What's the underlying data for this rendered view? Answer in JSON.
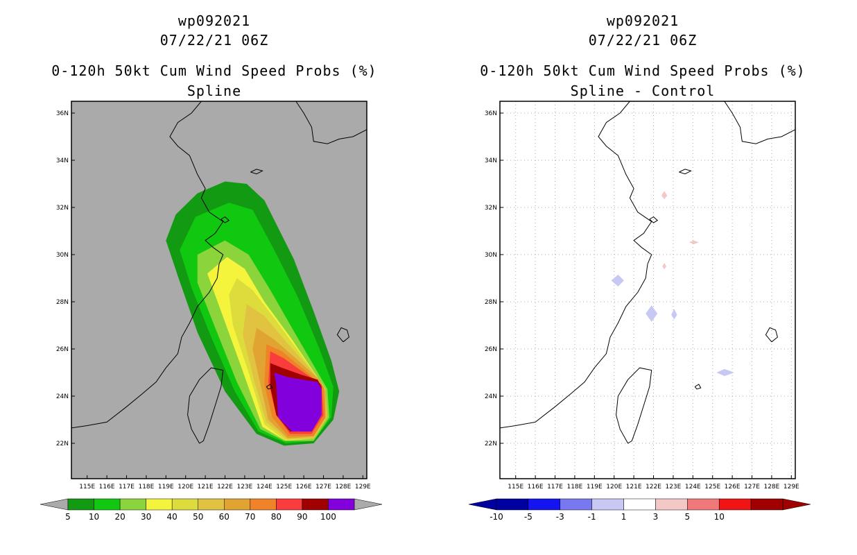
{
  "panels": [
    {
      "storm_id": "wp092021",
      "datetime": "07/22/21 06Z",
      "product": "0-120h 50kt Cum Wind Speed Probs (%)",
      "subtitle": "Spline"
    },
    {
      "storm_id": "wp092021",
      "datetime": "07/22/21 06Z",
      "product": "0-120h 50kt Cum Wind Speed Probs (%)",
      "subtitle": "Spline - Control"
    }
  ],
  "chart_data": [
    {
      "type": "heatmap",
      "title": "0-120h 50kt Cum Wind Speed Probs (%) Spline",
      "background_color": "#aaaaaa",
      "xlim": [
        114.2,
        129.2
      ],
      "ylim": [
        20.5,
        36.5
      ],
      "xticks": [
        {
          "value": 115,
          "label": "115E"
        },
        {
          "value": 116,
          "label": "116E"
        },
        {
          "value": 117,
          "label": "117E"
        },
        {
          "value": 118,
          "label": "118E"
        },
        {
          "value": 119,
          "label": "119E"
        },
        {
          "value": 120,
          "label": "120E"
        },
        {
          "value": 121,
          "label": "121E"
        },
        {
          "value": 122,
          "label": "122E"
        },
        {
          "value": 123,
          "label": "123E"
        },
        {
          "value": 124,
          "label": "124E"
        },
        {
          "value": 125,
          "label": "125E"
        },
        {
          "value": 126,
          "label": "126E"
        },
        {
          "value": 127,
          "label": "127E"
        },
        {
          "value": 128,
          "label": "128E"
        },
        {
          "value": 129,
          "label": "129E"
        }
      ],
      "yticks": [
        {
          "value": 22,
          "label": "22N"
        },
        {
          "value": 24,
          "label": "24N"
        },
        {
          "value": 26,
          "label": "26N"
        },
        {
          "value": 28,
          "label": "28N"
        },
        {
          "value": 30,
          "label": "30N"
        },
        {
          "value": 32,
          "label": "32N"
        },
        {
          "value": 34,
          "label": "34N"
        },
        {
          "value": 36,
          "label": "36N"
        }
      ],
      "grid": false,
      "contours": [
        {
          "level": 5,
          "color": "#129a12",
          "polygon": [
            [
              122.0,
              33.1
            ],
            [
              123.1,
              33.0
            ],
            [
              124.0,
              32.3
            ],
            [
              125.5,
              29.8
            ],
            [
              126.5,
              27.6
            ],
            [
              127.4,
              25.5
            ],
            [
              127.8,
              24.2
            ],
            [
              127.5,
              23.0
            ],
            [
              126.5,
              22.0
            ],
            [
              125.0,
              21.9
            ],
            [
              123.6,
              22.4
            ],
            [
              122.0,
              24.2
            ],
            [
              120.6,
              26.7
            ],
            [
              119.6,
              29.1
            ],
            [
              119.0,
              30.6
            ],
            [
              119.5,
              31.7
            ],
            [
              120.6,
              32.6
            ]
          ]
        },
        {
          "level": 10,
          "color": "#10c810",
          "polygon": [
            [
              122.2,
              32.2
            ],
            [
              123.4,
              31.9
            ],
            [
              124.5,
              30.2
            ],
            [
              125.7,
              28.2
            ],
            [
              126.8,
              26.0
            ],
            [
              127.5,
              24.4
            ],
            [
              127.4,
              23.1
            ],
            [
              126.5,
              22.1
            ],
            [
              125.1,
              22.0
            ],
            [
              123.7,
              22.5
            ],
            [
              122.5,
              24.2
            ],
            [
              121.3,
              26.5
            ],
            [
              120.3,
              28.6
            ],
            [
              119.7,
              30.2
            ],
            [
              120.5,
              31.6
            ]
          ]
        },
        {
          "level": 20,
          "color": "#8bd43c",
          "polygon": [
            [
              122.0,
              30.6
            ],
            [
              123.2,
              30.0
            ],
            [
              124.3,
              28.5
            ],
            [
              125.6,
              26.6
            ],
            [
              127.2,
              24.3
            ],
            [
              127.3,
              23.1
            ],
            [
              126.5,
              22.1
            ],
            [
              125.0,
              22.1
            ],
            [
              123.8,
              22.6
            ],
            [
              122.6,
              24.6
            ],
            [
              121.5,
              26.9
            ],
            [
              120.6,
              28.8
            ],
            [
              120.6,
              30.0
            ]
          ]
        },
        {
          "level": 30,
          "color": "#f4f43c",
          "polygon": [
            [
              122.1,
              29.9
            ],
            [
              123.0,
              29.4
            ],
            [
              124.0,
              28.0
            ],
            [
              125.4,
              26.4
            ],
            [
              127.1,
              24.3
            ],
            [
              127.2,
              23.1
            ],
            [
              126.5,
              22.2
            ],
            [
              125.1,
              22.1
            ],
            [
              123.9,
              22.7
            ],
            [
              122.8,
              25.3
            ],
            [
              121.8,
              27.6
            ],
            [
              121.1,
              29.2
            ]
          ]
        },
        {
          "level": 40,
          "color": "#dcdc3c",
          "polygon": [
            [
              122.6,
              29.0
            ],
            [
              123.4,
              28.5
            ],
            [
              124.6,
              27.2
            ],
            [
              126.0,
              25.6
            ],
            [
              127.1,
              24.3
            ],
            [
              127.2,
              23.1
            ],
            [
              126.5,
              22.2
            ],
            [
              125.1,
              22.1
            ],
            [
              124.0,
              22.8
            ],
            [
              123.2,
              25.0
            ],
            [
              122.4,
              27.0
            ],
            [
              122.2,
              28.3
            ]
          ]
        },
        {
          "level": 50,
          "color": "#e1c341",
          "polygon": [
            [
              123.1,
              27.9
            ],
            [
              124.0,
              27.4
            ],
            [
              125.1,
              26.3
            ],
            [
              126.3,
              25.2
            ],
            [
              127.1,
              24.3
            ],
            [
              127.2,
              23.1
            ],
            [
              126.5,
              22.2
            ],
            [
              125.1,
              22.2
            ],
            [
              124.1,
              22.9
            ],
            [
              123.5,
              24.6
            ],
            [
              122.9,
              26.6
            ]
          ]
        },
        {
          "level": 60,
          "color": "#e1a332",
          "polygon": [
            [
              123.6,
              26.9
            ],
            [
              124.5,
              26.4
            ],
            [
              125.6,
              25.6
            ],
            [
              126.8,
              24.7
            ],
            [
              127.1,
              24.2
            ],
            [
              127.1,
              23.1
            ],
            [
              126.5,
              22.3
            ],
            [
              125.2,
              22.2
            ],
            [
              124.2,
              23.0
            ],
            [
              123.8,
              24.5
            ],
            [
              123.4,
              26.0
            ]
          ]
        },
        {
          "level": 70,
          "color": "#f08228",
          "polygon": [
            [
              124.1,
              26.2
            ],
            [
              124.9,
              25.9
            ],
            [
              125.9,
              25.2
            ],
            [
              127.0,
              24.4
            ],
            [
              127.1,
              23.1
            ],
            [
              126.5,
              22.3
            ],
            [
              125.2,
              22.3
            ],
            [
              124.4,
              23.1
            ],
            [
              124.0,
              24.5
            ]
          ]
        },
        {
          "level": 80,
          "color": "#fa3c3c",
          "polygon": [
            [
              124.3,
              25.9
            ],
            [
              125.0,
              25.6
            ],
            [
              126.0,
              25.0
            ],
            [
              126.9,
              24.5
            ],
            [
              127.0,
              23.2
            ],
            [
              126.4,
              22.4
            ],
            [
              125.3,
              22.4
            ],
            [
              124.6,
              23.2
            ],
            [
              124.2,
              24.6
            ]
          ]
        },
        {
          "level": 90,
          "color": "#a00000",
          "polygon": [
            [
              124.3,
              25.4
            ],
            [
              124.9,
              25.2
            ],
            [
              125.9,
              24.9
            ],
            [
              126.7,
              24.7
            ],
            [
              126.9,
              24.4
            ],
            [
              126.9,
              23.2
            ],
            [
              126.4,
              22.5
            ],
            [
              125.3,
              22.5
            ],
            [
              124.6,
              23.2
            ],
            [
              124.3,
              24.4
            ]
          ]
        },
        {
          "level": 100,
          "color": "#8200dc",
          "polygon": [
            [
              124.5,
              25.0
            ],
            [
              125.2,
              24.8
            ],
            [
              126.7,
              24.6
            ],
            [
              126.9,
              24.3
            ],
            [
              126.9,
              23.2
            ],
            [
              126.4,
              22.5
            ],
            [
              125.4,
              22.5
            ],
            [
              124.7,
              23.1
            ],
            [
              124.6,
              24.5
            ]
          ]
        }
      ],
      "colorbar": {
        "labels": [
          "5",
          "10",
          "20",
          "30",
          "40",
          "50",
          "60",
          "70",
          "80",
          "90",
          "100"
        ],
        "colors": [
          "#129a12",
          "#10c810",
          "#8bd43c",
          "#f4f43c",
          "#dcdc3c",
          "#e1c341",
          "#e1a332",
          "#f08228",
          "#fa3c3c",
          "#a00000",
          "#8200dc"
        ],
        "low_end_color": "#aaaaaa",
        "high_end_color": "#aaaaaa"
      }
    },
    {
      "type": "heatmap",
      "title": "0-120h 50kt Cum Wind Speed Probs (%) Spline - Control",
      "background_color": "#ffffff",
      "xlim": [
        114.2,
        129.2
      ],
      "ylim": [
        20.5,
        36.5
      ],
      "xticks": [
        {
          "value": 115,
          "label": "115E"
        },
        {
          "value": 116,
          "label": "116E"
        },
        {
          "value": 117,
          "label": "117E"
        },
        {
          "value": 118,
          "label": "118E"
        },
        {
          "value": 119,
          "label": "119E"
        },
        {
          "value": 120,
          "label": "120E"
        },
        {
          "value": 121,
          "label": "121E"
        },
        {
          "value": 122,
          "label": "122E"
        },
        {
          "value": 123,
          "label": "123E"
        },
        {
          "value": 124,
          "label": "124E"
        },
        {
          "value": 125,
          "label": "125E"
        },
        {
          "value": 126,
          "label": "126E"
        },
        {
          "value": 127,
          "label": "127E"
        },
        {
          "value": 128,
          "label": "128E"
        },
        {
          "value": 129,
          "label": "129E"
        }
      ],
      "yticks": [
        {
          "value": 22,
          "label": "22N"
        },
        {
          "value": 24,
          "label": "24N"
        },
        {
          "value": 26,
          "label": "26N"
        },
        {
          "value": 28,
          "label": "28N"
        },
        {
          "value": 30,
          "label": "30N"
        },
        {
          "value": 32,
          "label": "32N"
        },
        {
          "value": 34,
          "label": "34N"
        },
        {
          "value": 36,
          "label": "36N"
        }
      ],
      "grid": true,
      "contours": [
        {
          "level": 1,
          "color": "#f5c8c8",
          "polygon": [
            [
              122.4,
              32.5
            ],
            [
              122.55,
              32.7
            ],
            [
              122.7,
              32.5
            ],
            [
              122.55,
              32.35
            ]
          ]
        },
        {
          "level": 1,
          "color": "#f5c8c8",
          "polygon": [
            [
              123.8,
              30.52
            ],
            [
              124.05,
              30.6
            ],
            [
              124.3,
              30.52
            ],
            [
              124.05,
              30.44
            ]
          ]
        },
        {
          "level": 1,
          "color": "#f5c8c8",
          "polygon": [
            [
              122.45,
              29.5
            ],
            [
              122.55,
              29.65
            ],
            [
              122.65,
              29.5
            ],
            [
              122.55,
              29.38
            ]
          ]
        },
        {
          "level": -1,
          "color": "#c8c8f5",
          "polygon": [
            [
              119.85,
              28.9
            ],
            [
              120.2,
              29.15
            ],
            [
              120.5,
              28.9
            ],
            [
              120.2,
              28.65
            ]
          ]
        },
        {
          "level": -1,
          "color": "#c8c8f5",
          "polygon": [
            [
              121.6,
              27.5
            ],
            [
              121.9,
              27.85
            ],
            [
              122.2,
              27.5
            ],
            [
              121.9,
              27.15
            ]
          ]
        },
        {
          "level": -1,
          "color": "#c8c8f5",
          "polygon": [
            [
              122.9,
              27.45
            ],
            [
              123.05,
              27.7
            ],
            [
              123.2,
              27.45
            ],
            [
              123.05,
              27.25
            ]
          ]
        },
        {
          "level": -1,
          "color": "#c8c8f5",
          "polygon": [
            [
              125.2,
              25.0
            ],
            [
              125.6,
              25.15
            ],
            [
              126.1,
              25.0
            ],
            [
              125.6,
              24.85
            ]
          ]
        }
      ],
      "colorbar": {
        "labels": [
          "-10",
          "-5",
          "-3",
          "-1",
          "1",
          "3",
          "5",
          "10"
        ],
        "colors": [
          "#0000a0",
          "#1414f0",
          "#7878f0",
          "#c8c8f5",
          "#ffffff",
          "#f5c8c8",
          "#f07878",
          "#f01414",
          "#a00000"
        ],
        "low_end_color": "#0000a0",
        "high_end_color": "#a00000"
      }
    }
  ]
}
